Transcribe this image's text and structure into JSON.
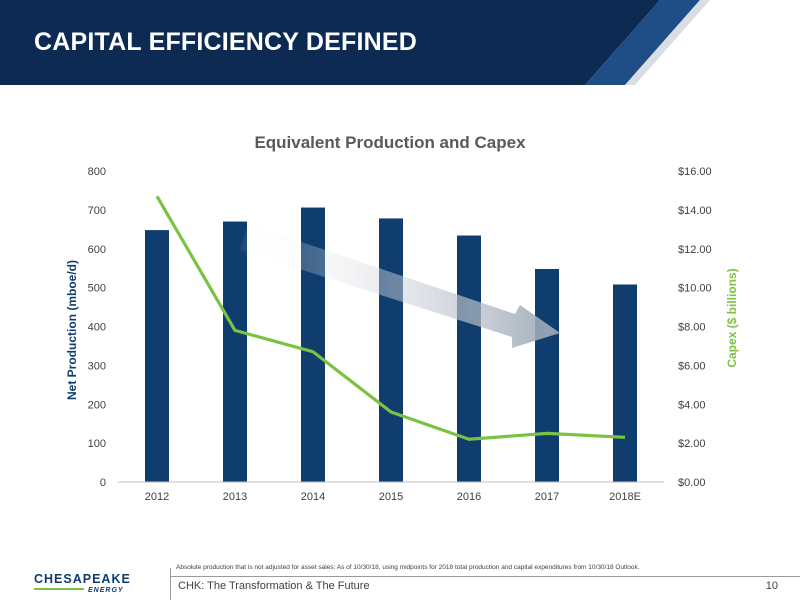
{
  "slide": {
    "title": "CAPITAL EFFICIENCY DEFINED",
    "footnote": "Absolute production that is not adjusted for asset sales; As of 10/30/18, using midpoints for 2018 total production and capital expenditures from 10/30/18 Outlook.",
    "footer": "CHK: The Transformation & The Future",
    "page_number": "10",
    "colors": {
      "header_dark": "#0c2a52",
      "header_mid": "#1f4e86",
      "bar": "#0f3d6e",
      "line": "#7cc242",
      "arrow": "#9aa6b4"
    }
  },
  "logo": {
    "name": "CHESAPEAKE",
    "sub": "ENERGY"
  },
  "chart_data": {
    "type": "bar",
    "title": "Equivalent Production and Capex",
    "categories": [
      "2012",
      "2013",
      "2014",
      "2015",
      "2016",
      "2017",
      "2018E"
    ],
    "series": [
      {
        "values": [
          648,
          670,
          706,
          678,
          634,
          548,
          508
        ],
        "axis": "left",
        "type": "bar"
      },
      {
        "values": [
          14.7,
          7.8,
          6.7,
          3.6,
          2.2,
          2.5,
          2.3
        ],
        "axis": "right",
        "type": "line"
      }
    ],
    "ylabel": "Net Production (mboe/d)",
    "ylabel_right": "Capex ($ billions)",
    "ylim": [
      0,
      800
    ],
    "ylim_right": [
      0,
      16
    ],
    "yticks": [
      "0",
      "100",
      "200",
      "300",
      "400",
      "500",
      "600",
      "700",
      "800"
    ],
    "yticks_right": [
      "$0.00",
      "$2.00",
      "$4.00",
      "$6.00",
      "$8.00",
      "$10.00",
      "$12.00",
      "$14.00",
      "$16.00"
    ],
    "grid": false,
    "annotation": "trend-arrow"
  }
}
